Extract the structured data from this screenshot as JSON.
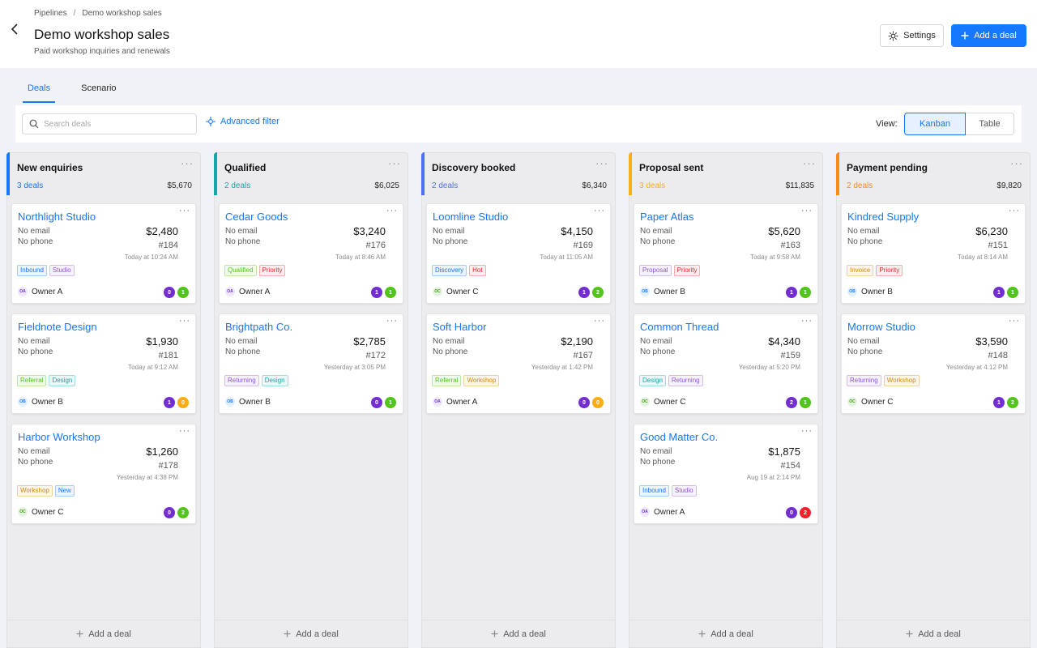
{
  "breadcrumb": {
    "parent": "Pipelines",
    "separator": "/",
    "current": "Demo workshop sales"
  },
  "page": {
    "title": "Demo workshop sales",
    "subtitle": "Paid workshop inquiries and renewals"
  },
  "actions": {
    "settings_label": "Settings",
    "add_deal_label": "Add a deal"
  },
  "tabs": [
    {
      "label": "Deals",
      "active": true
    },
    {
      "label": "Scenario",
      "active": false
    }
  ],
  "toolbar": {
    "search_placeholder": "Search deals",
    "advanced_filter_label": "Advanced filter",
    "view_label": "View:",
    "views": [
      {
        "label": "Kanban",
        "active": true
      },
      {
        "label": "Table",
        "active": false
      }
    ]
  },
  "add_deal_footer": "Add a deal",
  "columns": [
    {
      "title": "New enquiries",
      "count": "3 deals",
      "total": "$5,670",
      "color": "#1677ff",
      "cards": [
        {
          "title": "Northlight Studio",
          "email": "No email",
          "phone": "No phone",
          "amount": "$2,480",
          "id": "#184",
          "date": "Today at 10:24 AM",
          "tags": [
            "Inbound",
            "Studio"
          ],
          "owner_initials": "OA",
          "owner": "Owner A",
          "badges": [
            "0",
            "1"
          ]
        },
        {
          "title": "Fieldnote Design",
          "email": "No email",
          "phone": "No phone",
          "amount": "$1,930",
          "id": "#181",
          "date": "Today at 9:12 AM",
          "tags": [
            "Referral",
            "Design"
          ],
          "owner_initials": "OB",
          "owner": "Owner B",
          "badges": [
            "1",
            "0"
          ]
        },
        {
          "title": "Harbor Workshop",
          "email": "No email",
          "phone": "No phone",
          "amount": "$1,260",
          "id": "#178",
          "date": "Yesterday at 4:38 PM",
          "tags": [
            "Workshop",
            "New"
          ],
          "owner_initials": "OC",
          "owner": "Owner C",
          "badges": [
            "0",
            "2"
          ]
        }
      ]
    },
    {
      "title": "Qualified",
      "count": "2 deals",
      "total": "$6,025",
      "color": "#13a8a8",
      "cards": [
        {
          "title": "Cedar Goods",
          "email": "No email",
          "phone": "No phone",
          "amount": "$3,240",
          "id": "#176",
          "date": "Today at 8:46 AM",
          "tags": [
            "Qualified",
            "Priority"
          ],
          "owner_initials": "OA",
          "owner": "Owner A",
          "badges": [
            "1",
            "1"
          ]
        },
        {
          "title": "Brightpath Co.",
          "email": "No email",
          "phone": "No phone",
          "amount": "$2,785",
          "id": "#172",
          "date": "Yesterday at 3:05 PM",
          "tags": [
            "Returning",
            "Design"
          ],
          "owner_initials": "OB",
          "owner": "Owner B",
          "badges": [
            "0",
            "1"
          ]
        }
      ]
    },
    {
      "title": "Discovery booked",
      "count": "2 deals",
      "total": "$6,340",
      "color": "#4f6ef7",
      "cards": [
        {
          "title": "Loomline Studio",
          "email": "No email",
          "phone": "No phone",
          "amount": "$4,150",
          "id": "#169",
          "date": "Today at 11:05 AM",
          "tags": [
            "Discovery",
            "Hot"
          ],
          "owner_initials": "OC",
          "owner": "Owner C",
          "badges": [
            "1",
            "2"
          ]
        },
        {
          "title": "Soft Harbor",
          "email": "No email",
          "phone": "No phone",
          "amount": "$2,190",
          "id": "#167",
          "date": "Yesterday at 1:42 PM",
          "tags": [
            "Referral",
            "Workshop"
          ],
          "owner_initials": "OA",
          "owner": "Owner A",
          "badges": [
            "0",
            "0"
          ]
        }
      ]
    },
    {
      "title": "Proposal sent",
      "count": "3 deals",
      "total": "$11,835",
      "color": "#faad14",
      "cards": [
        {
          "title": "Paper Atlas",
          "email": "No email",
          "phone": "No phone",
          "amount": "$5,620",
          "id": "#163",
          "date": "Today at 9:58 AM",
          "tags": [
            "Proposal",
            "Priority"
          ],
          "owner_initials": "OB",
          "owner": "Owner B",
          "badges": [
            "1",
            "1"
          ]
        },
        {
          "title": "Common Thread",
          "email": "No email",
          "phone": "No phone",
          "amount": "$4,340",
          "id": "#159",
          "date": "Yesterday at 5:20 PM",
          "tags": [
            "Design",
            "Returning"
          ],
          "owner_initials": "OC",
          "owner": "Owner C",
          "badges": [
            "2",
            "1"
          ]
        },
        {
          "title": "Good Matter Co.",
          "email": "No email",
          "phone": "No phone",
          "amount": "$1,875",
          "id": "#154",
          "date": "Aug 19 at 2:14 PM",
          "tags": [
            "Inbound",
            "Studio"
          ],
          "owner_initials": "OA",
          "owner": "Owner A",
          "badges": [
            "0",
            "2"
          ]
        }
      ]
    },
    {
      "title": "Payment pending",
      "count": "2 deals",
      "total": "$9,820",
      "color": "#fa8c16",
      "cards": [
        {
          "title": "Kindred Supply",
          "email": "No email",
          "phone": "No phone",
          "amount": "$6,230",
          "id": "#151",
          "date": "Today at 8:14 AM",
          "tags": [
            "Invoice",
            "Priority"
          ],
          "owner_initials": "OB",
          "owner": "Owner B",
          "badges": [
            "1",
            "1"
          ]
        },
        {
          "title": "Morrow Studio",
          "email": "No email",
          "phone": "No phone",
          "amount": "$3,590",
          "id": "#148",
          "date": "Yesterday at 4:12 PM",
          "tags": [
            "Returning",
            "Workshop"
          ],
          "owner_initials": "OC",
          "owner": "Owner C",
          "badges": [
            "1",
            "2"
          ]
        }
      ]
    }
  ],
  "tag_colors": {
    "Inbound": "#1677ff",
    "Studio": "#9254de",
    "Referral": "#52c41a",
    "Design": "#13a8a8",
    "Workshop": "#d48806",
    "New": "#1677ff",
    "Qualified": "#52c41a",
    "Priority": "#f5222d",
    "Returning": "#9254de",
    "Discovery": "#1677ff",
    "Hot": "#f5222d",
    "Proposal": "#9254de",
    "Invoice": "#d48806"
  },
  "owner_colors": {
    "OA": "#722ed1",
    "OB": "#1677ff",
    "OC": "#389e0d"
  },
  "badge_colors": {
    "first": "#722ed1",
    "second_zero": "#faad14",
    "second": "#52c41a",
    "second_two_red": "#f5222d"
  },
  "colors": {
    "accent": "#1677ff",
    "title_text": "#141414",
    "muted_text": "#595959"
  }
}
